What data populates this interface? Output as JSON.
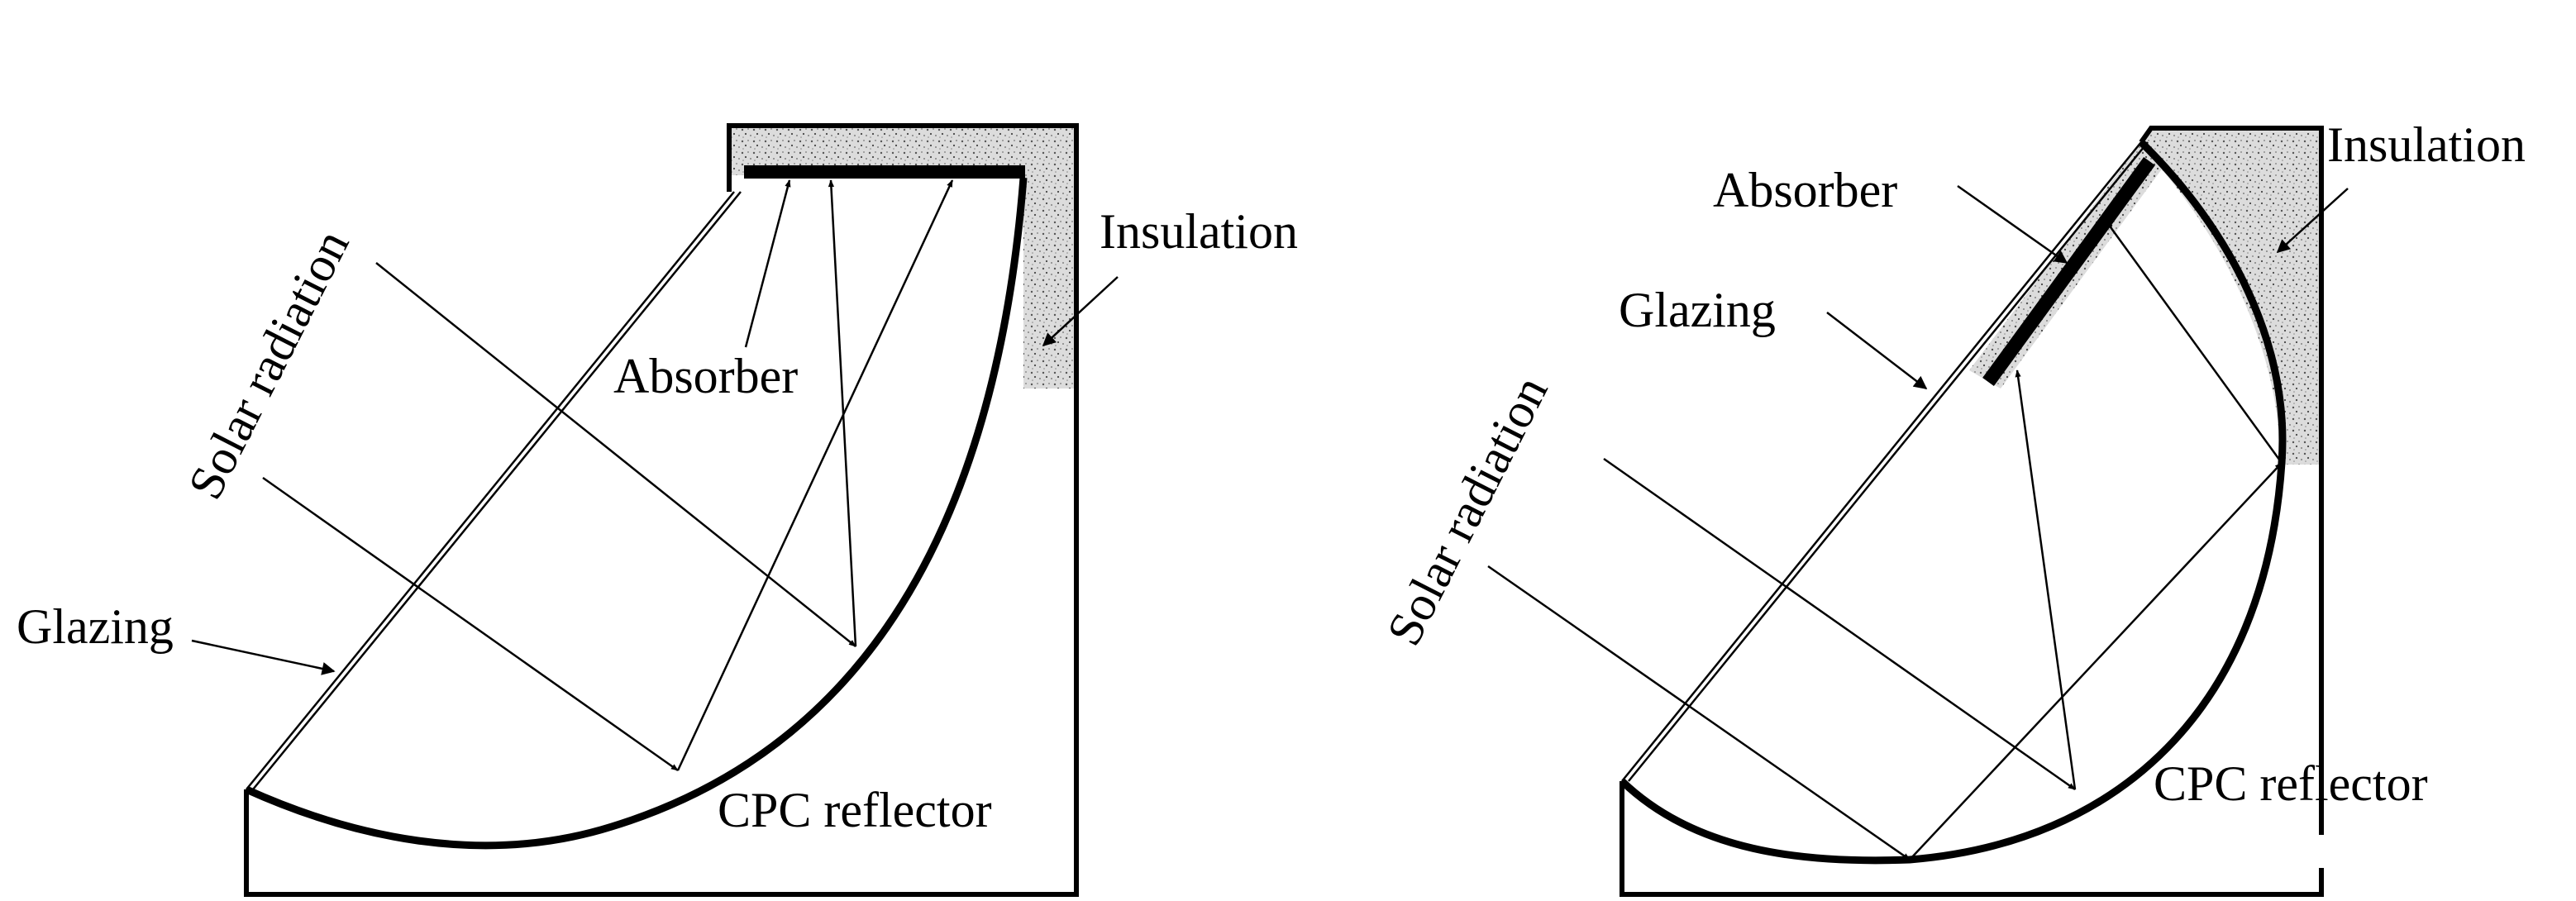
{
  "left_diagram": {
    "labels": {
      "solar_radiation": "Solar radiation",
      "absorber": "Absorber",
      "insulation": "Insulation",
      "glazing": "Glazing",
      "cpc_reflector": "CPC reflector"
    }
  },
  "right_diagram": {
    "labels": {
      "absorber": "Absorber",
      "insulation": "Insulation",
      "glazing": "Glazing",
      "solar_radiation": "Solar radiation",
      "cpc_reflector": "CPC reflector"
    }
  },
  "colors": {
    "line": "#000000",
    "insulation_fill": "#dcdcdc",
    "background": "#ffffff"
  }
}
